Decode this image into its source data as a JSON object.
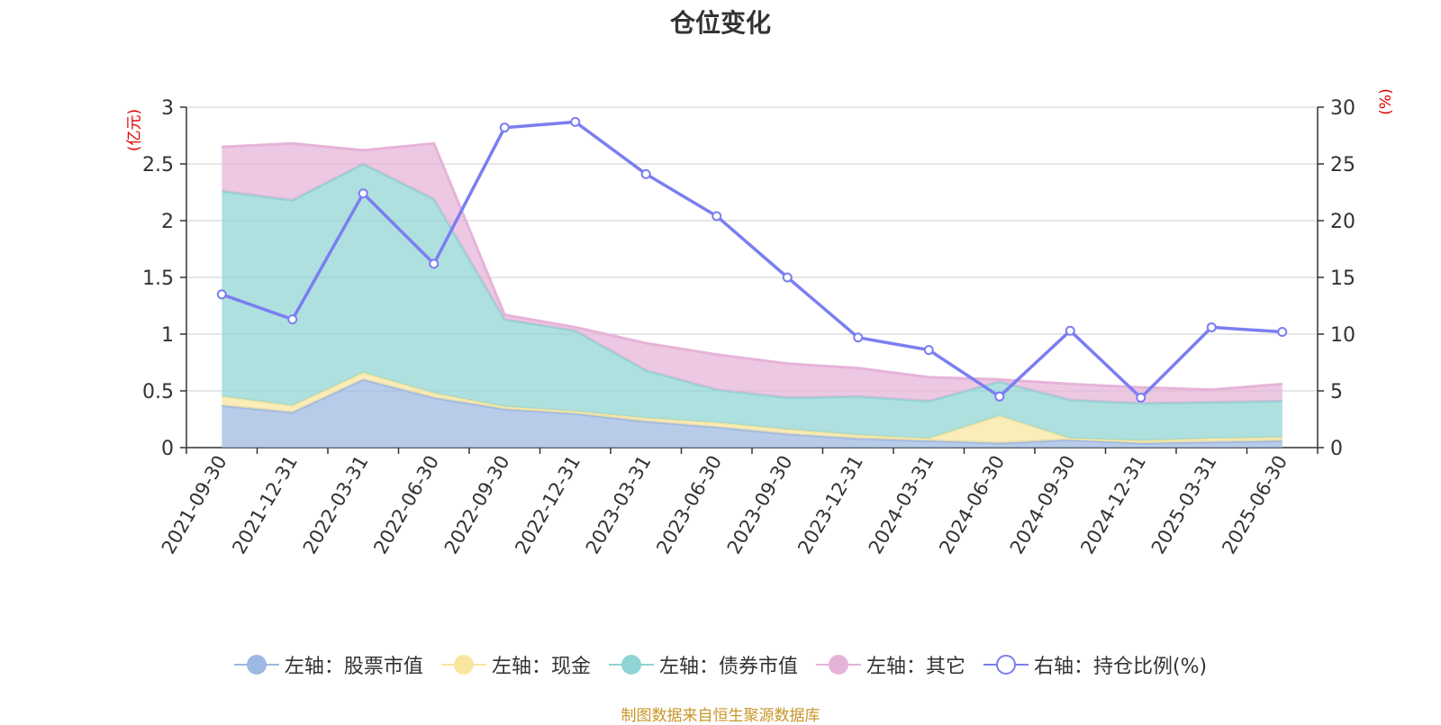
{
  "chart_data": {
    "type": "area",
    "title": "仓位变化",
    "categories": [
      "2021-09-30",
      "2021-12-31",
      "2022-03-31",
      "2022-06-30",
      "2022-09-30",
      "2022-12-31",
      "2023-03-31",
      "2023-06-30",
      "2023-09-30",
      "2023-12-31",
      "2024-03-31",
      "2024-06-30",
      "2024-09-30",
      "2024-12-31",
      "2025-03-31",
      "2025-06-30"
    ],
    "left_axis": {
      "unit": "(亿元)",
      "ylim": [
        0,
        3
      ],
      "ticks": [
        "0",
        "0.5",
        "1",
        "1.5",
        "2",
        "2.5",
        "3"
      ]
    },
    "right_axis": {
      "unit": "(%)",
      "ylim": [
        0,
        30
      ],
      "ticks": [
        "0",
        "5",
        "10",
        "15",
        "20",
        "25",
        "30"
      ]
    },
    "grid": true,
    "legend_position": "bottom",
    "stacked_series": [
      {
        "name": "左轴：股票市值",
        "color": "#9db8e2",
        "values": [
          0.37,
          0.31,
          0.6,
          0.44,
          0.34,
          0.3,
          0.23,
          0.18,
          0.12,
          0.08,
          0.06,
          0.04,
          0.07,
          0.04,
          0.05,
          0.06
        ]
      },
      {
        "name": "左轴：现金",
        "color": "#f8e6a0",
        "values": [
          0.08,
          0.06,
          0.06,
          0.04,
          0.02,
          0.02,
          0.03,
          0.04,
          0.04,
          0.03,
          0.02,
          0.24,
          0.01,
          0.02,
          0.03,
          0.03
        ]
      },
      {
        "name": "左轴：债券市值",
        "color": "#8fd4d4",
        "values": [
          1.81,
          1.81,
          1.84,
          1.71,
          0.77,
          0.71,
          0.42,
          0.29,
          0.28,
          0.34,
          0.33,
          0.3,
          0.34,
          0.33,
          0.32,
          0.32
        ]
      },
      {
        "name": "左轴：其它",
        "color": "#e6b3d8",
        "values": [
          0.39,
          0.5,
          0.12,
          0.49,
          0.04,
          0.03,
          0.24,
          0.31,
          0.3,
          0.25,
          0.21,
          0.02,
          0.14,
          0.14,
          0.11,
          0.15
        ]
      }
    ],
    "line_series": {
      "name": "右轴：持仓比例(%)",
      "color": "#7b7ef0",
      "values": [
        13.5,
        11.3,
        22.4,
        16.2,
        28.2,
        28.7,
        24.1,
        20.4,
        15.0,
        9.7,
        8.6,
        4.5,
        10.3,
        4.4,
        10.6,
        10.2
      ]
    }
  },
  "source_note": "制图数据来自恒生聚源数据库"
}
